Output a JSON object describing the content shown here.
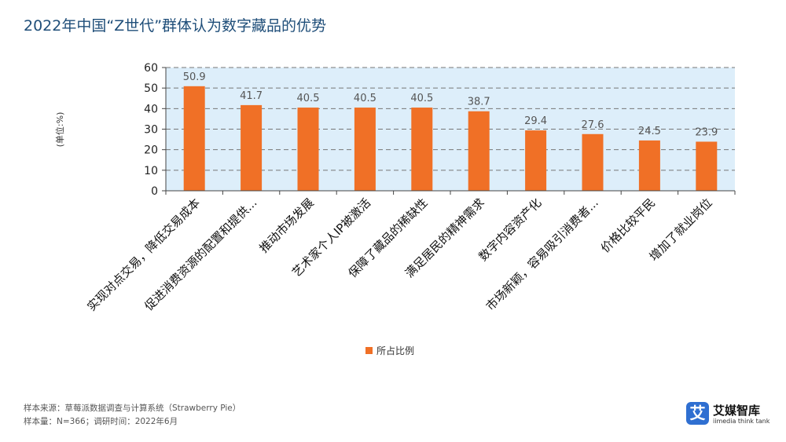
{
  "title": "2022年中国“Z世代”群体认为数字藏品的优势",
  "source_lines": [
    "样本来源：草莓派数据调查与计算系统（Strawberry Pie）",
    "样本量：N=366；调研时间：2022年6月"
  ],
  "brand": {
    "name": "艾媒智库",
    "sub": "iimedia think tank",
    "mark": "艾"
  },
  "colors": {
    "bar": "#f07026",
    "plot_bg": "#ddeefa",
    "title": "#1f4e79"
  },
  "chart_data": {
    "type": "bar",
    "title": "",
    "ylabel": "(单位:%)",
    "xlabel": "",
    "ylim": [
      0,
      60
    ],
    "yticks": [
      0,
      10,
      20,
      30,
      40,
      50,
      60
    ],
    "grid": true,
    "legend": "bottom-center",
    "series": [
      {
        "name": "所占比例",
        "values": [
          50.9,
          41.7,
          40.5,
          40.5,
          40.5,
          38.7,
          29.4,
          27.6,
          24.5,
          23.9
        ]
      }
    ],
    "categories": [
      "实现对点交易，降低交易成本",
      "促进消费资源的配置和提供...",
      "推动市场发展",
      "艺术家个人IP被激活",
      "保障了藏品的稀缺性",
      "满足居民的精神需求",
      "数字内容资产化",
      "市场新颖，容易吸引消费者...",
      "价格比较平民",
      "增加了就业岗位"
    ]
  }
}
